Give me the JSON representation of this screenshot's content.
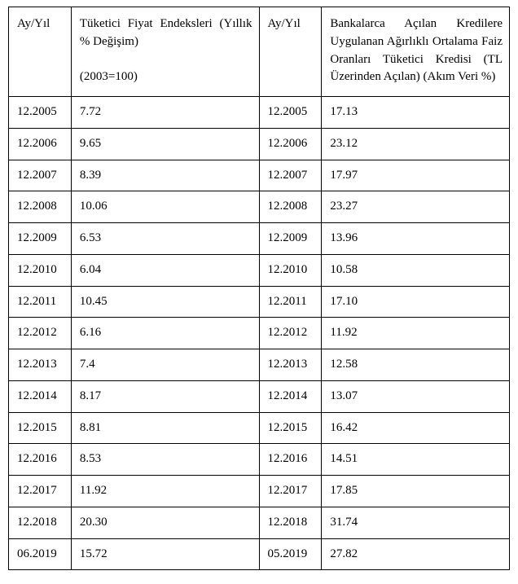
{
  "table": {
    "columns": [
      {
        "label": "Ay/Yıl"
      },
      {
        "label_line1": "Tüketici Fiyat Endeksleri (Yıllık % Değişim)",
        "label_line2": "(2003=100)"
      },
      {
        "label": "Ay/Yıl"
      },
      {
        "label": "Bankalarca Açılan Kredilere Uygulanan Ağırlıklı Ortalama Faiz Oranları Tüketici Kredisi (TL Üzerinden Açılan) (Akım Veri %)"
      }
    ],
    "rows": [
      {
        "c1": "12.2005",
        "c2": "7.72",
        "c3": "12.2005",
        "c4": "17.13"
      },
      {
        "c1": "12.2006",
        "c2": "9.65",
        "c3": "12.2006",
        "c4": "23.12"
      },
      {
        "c1": "12.2007",
        "c2": "8.39",
        "c3": "12.2007",
        "c4": "17.97"
      },
      {
        "c1": "12.2008",
        "c2": "10.06",
        "c3": "12.2008",
        "c4": "23.27"
      },
      {
        "c1": "12.2009",
        "c2": "6.53",
        "c3": "12.2009",
        "c4": "13.96"
      },
      {
        "c1": "12.2010",
        "c2": "6.04",
        "c3": "12.2010",
        "c4": "10.58"
      },
      {
        "c1": "12.2011",
        "c2": "10.45",
        "c3": "12.2011",
        "c4": "17.10"
      },
      {
        "c1": "12.2012",
        "c2": "6.16",
        "c3": "12.2012",
        "c4": "11.92"
      },
      {
        "c1": "12.2013",
        "c2": "7.4",
        "c3": "12.2013",
        "c4": "12.58"
      },
      {
        "c1": "12.2014",
        "c2": "8.17",
        "c3": "12.2014",
        "c4": "13.07"
      },
      {
        "c1": "12.2015",
        "c2": "8.81",
        "c3": "12.2015",
        "c4": "16.42"
      },
      {
        "c1": "12.2016",
        "c2": "8.53",
        "c3": "12.2016",
        "c4": "14.51"
      },
      {
        "c1": "12.2017",
        "c2": "11.92",
        "c3": "12.2017",
        "c4": "17.85"
      },
      {
        "c1": "12.2018",
        "c2": "20.30",
        "c3": "12.2018",
        "c4": "31.74"
      },
      {
        "c1": "06.2019",
        "c2": "15.72",
        "c3": "05.2019",
        "c4": "27.82"
      }
    ],
    "border_color": "#000000",
    "background_color": "#ffffff",
    "font_family": "Times New Roman",
    "font_size_pt": 11,
    "text_color": "#000000"
  }
}
